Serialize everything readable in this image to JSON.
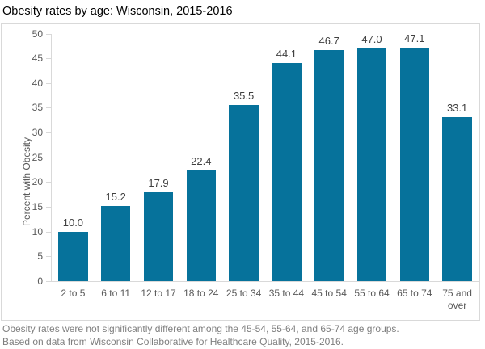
{
  "title": "Obesity rates by age: Wisconsin, 2015-2016",
  "footnotes": [
    "Obesity rates were not significantly different among the 45-54, 55-64, and 65-74 age groups.",
    "Based on data from Wisconsin Collaborative for Healthcare Quality, 2015-2016."
  ],
  "chart_data": {
    "type": "bar",
    "title": "Obesity rates by age: Wisconsin, 2015-2016",
    "categories": [
      "2 to 5",
      "6 to 11",
      "12 to 17",
      "18 to 24",
      "25 to 34",
      "35 to 44",
      "45 to 54",
      "55 to 64",
      "65 to 74",
      "75 and over"
    ],
    "values": [
      10.0,
      15.2,
      17.9,
      22.4,
      35.5,
      44.1,
      46.7,
      47.0,
      47.1,
      33.1
    ],
    "value_label_decimals": 1,
    "xlabel": "",
    "ylabel": "Percent with Obesity",
    "ylim": [
      0,
      50
    ],
    "ytick_step": 5,
    "grid": false,
    "legend_position": "none",
    "colors": {
      "bar": "#06729B",
      "axis": "#D9D9D9",
      "value_label": "#404040",
      "tick_label": "#595959",
      "title": "#000000",
      "footnote": "#7F7F7F"
    }
  }
}
